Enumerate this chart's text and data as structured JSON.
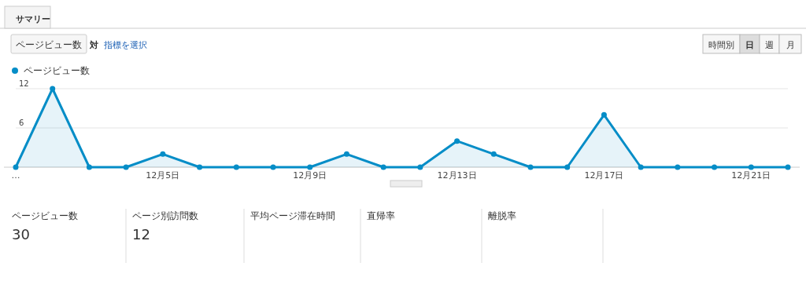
{
  "chart_data": [
    {
      "type": "area",
      "legend": "top left",
      "grid": "y",
      "marker": "circle",
      "categories": [
        "…",
        null,
        null,
        null,
        "12月5日",
        null,
        null,
        null,
        "12月9日",
        null,
        null,
        null,
        "12月13日",
        null,
        null,
        null,
        "12月17日",
        null,
        null,
        null,
        "12月21日",
        null
      ],
      "series": [
        {
          "name": "ページビュー数",
          "color": "#058dc7",
          "values": [
            0,
            12,
            0,
            0,
            2,
            0,
            0,
            0,
            0,
            2,
            0,
            0,
            4,
            2,
            0,
            0,
            8,
            0,
            0,
            0,
            0,
            0
          ]
        }
      ],
      "ylim": [
        0,
        12
      ],
      "yticks": [
        {
          "value": 0,
          "label": null
        },
        6,
        12
      ],
      "annotations": [
        "サマリー",
        "ページビュー数",
        "対",
        "指標を選択",
        "時間別",
        "日",
        "週",
        "月"
      ]
    },
    {
      "type": "other",
      "annotations": [
        "ページビュー数",
        "30",
        "ページ別訪問数",
        "12",
        "平均ページ滞在時間",
        "直帰率",
        "離脱率"
      ]
    }
  ]
}
